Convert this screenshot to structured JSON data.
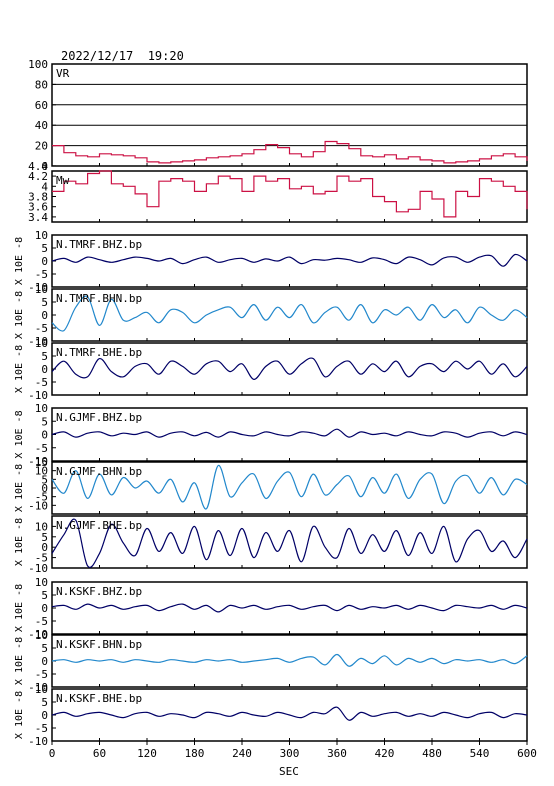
{
  "header": {
    "datetime": "2022/12/17  19:20"
  },
  "xaxis": {
    "label": "SEC",
    "ticks": [
      0,
      60,
      120,
      180,
      240,
      300,
      360,
      420,
      480,
      540,
      600
    ],
    "range": [
      0,
      600
    ]
  },
  "colors": {
    "vr": "#cc1144",
    "mw": "#cc1144",
    "dark_blue": "#000066",
    "light_blue": "#2288cc",
    "frame": "#000000"
  },
  "chart_data": {
    "type": "line",
    "x_label": "SEC",
    "x_range": [
      0,
      600
    ],
    "panels": [
      {
        "id": "vr",
        "label": "VR",
        "ylabel": "",
        "ylim": [
          0,
          100
        ],
        "yticks": [
          0,
          20,
          40,
          60,
          80,
          100
        ],
        "grid": true,
        "color_key": "vr",
        "x": [
          0,
          15,
          30,
          45,
          60,
          75,
          90,
          105,
          120,
          135,
          150,
          165,
          180,
          195,
          210,
          225,
          240,
          255,
          270,
          285,
          300,
          315,
          330,
          345,
          360,
          375,
          390,
          405,
          420,
          435,
          450,
          465,
          480,
          495,
          510,
          525,
          540,
          555,
          570,
          585,
          600
        ],
        "y": [
          20,
          13,
          10,
          9,
          12,
          11,
          10,
          8,
          4,
          3,
          4,
          5,
          6,
          8,
          9,
          10,
          12,
          16,
          21,
          18,
          12,
          9,
          14,
          24,
          22,
          17,
          10,
          9,
          11,
          7,
          9,
          6,
          5,
          3,
          4,
          5,
          7,
          10,
          12,
          9,
          5
        ]
      },
      {
        "id": "mw",
        "label": "Mw",
        "ylabel": "",
        "ylim": [
          3.3,
          4.3
        ],
        "yticks": [
          3.4,
          3.6,
          3.8,
          4.0,
          4.2,
          4.4
        ],
        "grid": false,
        "color_key": "mw",
        "x": [
          0,
          15,
          30,
          45,
          60,
          75,
          90,
          105,
          120,
          135,
          150,
          165,
          180,
          195,
          210,
          225,
          240,
          255,
          270,
          285,
          300,
          315,
          330,
          345,
          360,
          375,
          390,
          405,
          420,
          435,
          450,
          465,
          480,
          495,
          510,
          525,
          540,
          555,
          570,
          585,
          600
        ],
        "y": [
          3.9,
          4.1,
          4.05,
          4.25,
          4.3,
          4.05,
          4.0,
          3.85,
          3.6,
          4.1,
          4.15,
          4.1,
          3.9,
          4.05,
          4.2,
          4.15,
          3.9,
          4.2,
          4.1,
          4.15,
          3.95,
          4.0,
          3.85,
          3.9,
          4.2,
          4.1,
          4.15,
          3.8,
          3.7,
          3.5,
          3.55,
          3.9,
          3.75,
          3.4,
          3.9,
          3.8,
          4.15,
          4.1,
          4.0,
          3.9,
          3.55
        ]
      },
      {
        "id": "tmrf_bhz",
        "label": "N.TMRF.BHZ.bp",
        "ylabel": "X 10E -8",
        "ylim": [
          -10,
          10
        ],
        "yticks": [
          -10,
          -5,
          0,
          5,
          10
        ],
        "color_key": "dark_blue",
        "x": [
          0,
          15,
          30,
          45,
          60,
          75,
          90,
          105,
          120,
          135,
          150,
          165,
          180,
          195,
          210,
          225,
          240,
          255,
          270,
          285,
          300,
          315,
          330,
          345,
          360,
          375,
          390,
          405,
          420,
          435,
          450,
          465,
          480,
          495,
          510,
          525,
          540,
          555,
          570,
          585,
          600
        ],
        "y": [
          0,
          1,
          -0.5,
          1.5,
          0.5,
          -0.5,
          0.5,
          1.5,
          1,
          0,
          1,
          -1,
          0.5,
          1.5,
          -0.5,
          0.5,
          1,
          -0.5,
          0.8,
          0,
          1.5,
          -1,
          0.5,
          0.3,
          1,
          0.5,
          -0.5,
          1.2,
          0.5,
          -1,
          1.5,
          0.5,
          -1.5,
          1.2,
          1.5,
          -0.5,
          1.5,
          2,
          -2,
          2.5,
          0
        ]
      },
      {
        "id": "tmrf_bhn",
        "label": "N.TMRF.BHN.bp",
        "ylabel": "X 10E -8",
        "ylim": [
          -10,
          10
        ],
        "yticks": [
          -10,
          -5,
          0,
          5,
          10
        ],
        "color_key": "light_blue",
        "x": [
          0,
          15,
          30,
          45,
          60,
          75,
          90,
          105,
          120,
          135,
          150,
          165,
          180,
          195,
          210,
          225,
          240,
          255,
          270,
          285,
          300,
          315,
          330,
          345,
          360,
          375,
          390,
          405,
          420,
          435,
          450,
          465,
          480,
          495,
          510,
          525,
          540,
          555,
          570,
          585,
          600
        ],
        "y": [
          -3,
          -6,
          3,
          7,
          -4,
          6,
          -2,
          -1,
          1,
          -3,
          2,
          1,
          -3,
          0,
          2,
          3,
          -1,
          4,
          -2,
          3,
          -1,
          4,
          -3,
          1,
          3,
          -2,
          4,
          -3,
          2,
          0,
          3,
          -2,
          4,
          -1,
          2,
          -3,
          3,
          0,
          -2,
          2,
          -1
        ]
      },
      {
        "id": "tmrf_bhe",
        "label": "N.TMRF.BHE.bp",
        "ylabel": "X 10E -8",
        "ylim": [
          -10,
          10
        ],
        "yticks": [
          -10,
          -5,
          0,
          5,
          10
        ],
        "color_key": "dark_blue",
        "x": [
          0,
          15,
          30,
          45,
          60,
          75,
          90,
          105,
          120,
          135,
          150,
          165,
          180,
          195,
          210,
          225,
          240,
          255,
          270,
          285,
          300,
          315,
          330,
          345,
          360,
          375,
          390,
          405,
          420,
          435,
          450,
          465,
          480,
          495,
          510,
          525,
          540,
          555,
          570,
          585,
          600
        ],
        "y": [
          -1,
          3,
          -2,
          -3,
          4,
          -1,
          -3,
          1,
          2,
          -2,
          3,
          1,
          -2,
          2,
          3,
          -1,
          2,
          -4,
          1,
          3,
          -2,
          2,
          4,
          -3,
          1,
          3,
          -2,
          2,
          -1,
          3,
          -3,
          1,
          2,
          -1,
          3,
          0,
          3,
          -2,
          2,
          -3,
          1
        ]
      },
      {
        "id": "gjmf_bhz",
        "label": "N.GJMF.BHZ.bp",
        "ylabel": "X 10E -8",
        "ylim": [
          -10,
          10
        ],
        "yticks": [
          -10,
          -5,
          0,
          5,
          10
        ],
        "color_key": "dark_blue",
        "x": [
          0,
          15,
          30,
          45,
          60,
          75,
          90,
          105,
          120,
          135,
          150,
          165,
          180,
          195,
          210,
          225,
          240,
          255,
          270,
          285,
          300,
          315,
          330,
          345,
          360,
          375,
          390,
          405,
          420,
          435,
          450,
          465,
          480,
          495,
          510,
          525,
          540,
          555,
          570,
          585,
          600
        ],
        "y": [
          0,
          1,
          -1,
          0.5,
          1,
          -0.5,
          0.5,
          0,
          1,
          -1,
          0.5,
          1,
          -0.5,
          0.8,
          -1,
          1,
          0,
          -0.5,
          1,
          0,
          -0.5,
          1,
          0.5,
          -0.5,
          2,
          -1,
          1,
          0,
          0.5,
          -0.5,
          1,
          0,
          -0.5,
          1,
          0.5,
          -1,
          0.5,
          1,
          -0.5,
          1,
          0
        ]
      },
      {
        "id": "gjmf_bhn",
        "label": "N.GJMF.BHN.bp",
        "ylabel": "X 10E -8",
        "ylim": [
          -15,
          15
        ],
        "yticks": [
          -10,
          -5,
          0,
          5,
          10,
          15
        ],
        "color_key": "light_blue",
        "x": [
          0,
          15,
          30,
          45,
          60,
          75,
          90,
          105,
          120,
          135,
          150,
          165,
          180,
          195,
          210,
          225,
          240,
          255,
          270,
          285,
          300,
          315,
          330,
          345,
          360,
          375,
          390,
          405,
          420,
          435,
          450,
          465,
          480,
          495,
          510,
          525,
          540,
          555,
          570,
          585,
          600
        ],
        "y": [
          5,
          -3,
          10,
          -6,
          8,
          -4,
          6,
          0,
          4,
          -3,
          5,
          -8,
          3,
          -12,
          13,
          -5,
          3,
          8,
          -6,
          4,
          9,
          -5,
          8,
          -4,
          2,
          7,
          -5,
          6,
          -3,
          8,
          -6,
          5,
          8,
          -9,
          4,
          7,
          -3,
          6,
          -4,
          5,
          2
        ]
      },
      {
        "id": "gjmf_bhe",
        "label": "N.GJMF.BHE.bp",
        "ylabel": "X 10E -8",
        "ylim": [
          -10,
          15
        ],
        "yticks": [
          -10,
          -5,
          0,
          5,
          10
        ],
        "color_key": "dark_blue",
        "x": [
          0,
          15,
          30,
          45,
          60,
          75,
          90,
          105,
          120,
          135,
          150,
          165,
          180,
          195,
          210,
          225,
          240,
          255,
          270,
          285,
          300,
          315,
          330,
          345,
          360,
          375,
          390,
          405,
          420,
          435,
          450,
          465,
          480,
          495,
          510,
          525,
          540,
          555,
          570,
          585,
          600
        ],
        "y": [
          -3,
          6,
          13,
          -9,
          -3,
          11,
          2,
          -4,
          9,
          -2,
          7,
          -3,
          10,
          -6,
          8,
          -4,
          9,
          -5,
          7,
          -2,
          8,
          -7,
          10,
          0,
          -5,
          9,
          -3,
          6,
          -2,
          8,
          -4,
          7,
          -3,
          10,
          -7,
          4,
          8,
          -2,
          3,
          -5,
          4
        ]
      },
      {
        "id": "kskf_bhz",
        "label": "N.KSKF.BHZ.bp",
        "ylabel": "X 10E -8",
        "ylim": [
          -10,
          10
        ],
        "yticks": [
          -10,
          -5,
          0,
          5,
          10
        ],
        "color_key": "dark_blue",
        "x": [
          0,
          15,
          30,
          45,
          60,
          75,
          90,
          105,
          120,
          135,
          150,
          165,
          180,
          195,
          210,
          225,
          240,
          255,
          270,
          285,
          300,
          315,
          330,
          345,
          360,
          375,
          390,
          405,
          420,
          435,
          450,
          465,
          480,
          495,
          510,
          525,
          540,
          555,
          570,
          585,
          600
        ],
        "y": [
          0.5,
          1,
          -0.5,
          1.5,
          0,
          1,
          -0.5,
          0.5,
          1,
          -1,
          0.5,
          1.5,
          -0.5,
          1,
          -1.5,
          1,
          0,
          1,
          -0.5,
          0.5,
          1,
          -0.5,
          0.5,
          1,
          -1,
          1,
          -0.5,
          0.5,
          0,
          1,
          -0.5,
          1,
          0,
          -1,
          1,
          0.5,
          0,
          1,
          -0.5,
          1,
          0
        ]
      },
      {
        "id": "kskf_bhn",
        "label": "N.KSKF.BHN.bp",
        "ylabel": "X 10E -8",
        "ylim": [
          -10,
          10
        ],
        "yticks": [
          -10,
          -5,
          0,
          5,
          10
        ],
        "color_key": "light_blue",
        "x": [
          0,
          15,
          30,
          45,
          60,
          75,
          90,
          105,
          120,
          135,
          150,
          165,
          180,
          195,
          210,
          225,
          240,
          255,
          270,
          285,
          300,
          315,
          330,
          345,
          360,
          375,
          390,
          405,
          420,
          435,
          450,
          465,
          480,
          495,
          510,
          525,
          540,
          555,
          570,
          585,
          600
        ],
        "y": [
          0,
          0.5,
          -0.5,
          0.5,
          0,
          0.5,
          -0.5,
          0.5,
          0,
          -0.5,
          0.5,
          0,
          -0.5,
          0.5,
          0,
          0.5,
          -0.5,
          0,
          0.5,
          1,
          -0.5,
          1,
          1.5,
          -1.5,
          2.5,
          -2,
          1,
          -1,
          2,
          -1.5,
          1,
          -0.5,
          1,
          -1,
          0.5,
          0,
          0.5,
          -0.5,
          0.5,
          -1,
          2
        ]
      },
      {
        "id": "kskf_bhe",
        "label": "N.KSKF.BHE.bp",
        "ylabel": "X 10E -8",
        "ylim": [
          -10,
          10
        ],
        "yticks": [
          -10,
          -5,
          0,
          5,
          10
        ],
        "color_key": "dark_blue",
        "x": [
          0,
          15,
          30,
          45,
          60,
          75,
          90,
          105,
          120,
          135,
          150,
          165,
          180,
          195,
          210,
          225,
          240,
          255,
          270,
          285,
          300,
          315,
          330,
          345,
          360,
          375,
          390,
          405,
          420,
          435,
          450,
          465,
          480,
          495,
          510,
          525,
          540,
          555,
          570,
          585,
          600
        ],
        "y": [
          0,
          1,
          -0.5,
          0.5,
          1,
          0,
          -1,
          0.5,
          1,
          -0.5,
          0.5,
          0,
          -1,
          1,
          0.5,
          -0.5,
          1,
          0,
          -0.5,
          1,
          0,
          -1,
          1,
          0.5,
          3,
          -2,
          1,
          -0.5,
          0.5,
          1,
          -0.5,
          0.5,
          -0.5,
          1,
          0,
          -1,
          0.5,
          1,
          -1,
          0.5,
          0
        ]
      }
    ]
  }
}
